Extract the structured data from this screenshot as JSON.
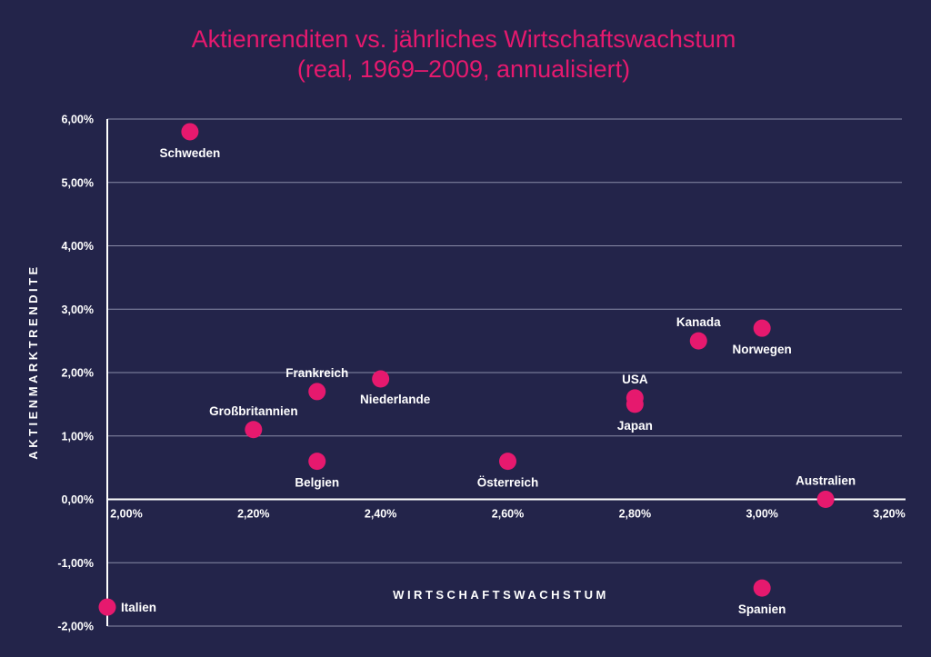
{
  "colors": {
    "background": "#23244a",
    "accent": "#e6196e",
    "text": "#ffffff",
    "grid": "#8a8ba8"
  },
  "chart_data": {
    "type": "scatter",
    "title": "Aktienrenditen vs. jährliches Wirtschaftswachstum",
    "subtitle": "(real, 1969–2009, annualisiert)",
    "xlabel": "WIRTSCHAFTSWACHSTUM",
    "ylabel": "AKTIENMARKTRENDITE",
    "xlim": [
      1.97,
      3.22
    ],
    "ylim": [
      -2.0,
      6.0
    ],
    "x_ticks": [
      2.0,
      2.2,
      2.4,
      2.6,
      2.8,
      3.0,
      3.2
    ],
    "x_tick_labels": [
      "2,00%",
      "2,20%",
      "2,40%",
      "2,60%",
      "2,80%",
      "3,00%",
      "3,20%"
    ],
    "y_ticks": [
      -2,
      -1,
      0,
      1,
      2,
      3,
      4,
      5,
      6
    ],
    "y_tick_labels": [
      "-2,00%",
      "-1,00%",
      "0,00%",
      "1,00%",
      "2,00%",
      "3,00%",
      "4,00%",
      "5,00%",
      "6,00%"
    ],
    "grid": "horizontal",
    "units": "%",
    "points": [
      {
        "label": "Schweden",
        "x": 2.1,
        "y": 5.8,
        "label_pos": "below"
      },
      {
        "label": "Italien",
        "x": 1.97,
        "y": -1.7,
        "label_pos": "right"
      },
      {
        "label": "Großbritannien",
        "x": 2.2,
        "y": 1.1,
        "label_pos": "above"
      },
      {
        "label": "Frankreich",
        "x": 2.3,
        "y": 1.7,
        "label_pos": "above"
      },
      {
        "label": "Belgien",
        "x": 2.3,
        "y": 0.6,
        "label_pos": "below"
      },
      {
        "label": "Niederlande",
        "x": 2.4,
        "y": 1.9,
        "label_pos": "below-right"
      },
      {
        "label": "Österreich",
        "x": 2.6,
        "y": 0.6,
        "label_pos": "below"
      },
      {
        "label": "USA",
        "x": 2.8,
        "y": 1.6,
        "label_pos": "above"
      },
      {
        "label": "Japan",
        "x": 2.8,
        "y": 1.5,
        "label_pos": "below"
      },
      {
        "label": "Kanada",
        "x": 2.9,
        "y": 2.5,
        "label_pos": "above"
      },
      {
        "label": "Norwegen",
        "x": 3.0,
        "y": 2.7,
        "label_pos": "below"
      },
      {
        "label": "Australien",
        "x": 3.1,
        "y": 0.0,
        "label_pos": "above"
      },
      {
        "label": "Spanien",
        "x": 3.0,
        "y": -1.4,
        "label_pos": "below"
      }
    ]
  }
}
